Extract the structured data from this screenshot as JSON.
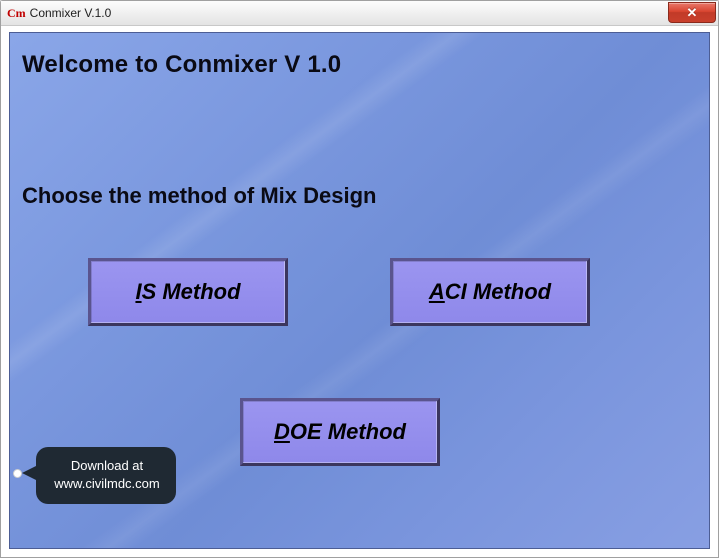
{
  "window": {
    "app_icon_text": "Cm",
    "title": "Conmixer V.1.0",
    "close_glyph": "✕"
  },
  "headings": {
    "welcome": "Welcome to Conmixer V 1.0",
    "choose": "Choose the method of Mix Design"
  },
  "buttons": {
    "is": {
      "hotkey": "I",
      "rest": "S Method"
    },
    "aci": {
      "hotkey": "A",
      "rest": "CI Method"
    },
    "doe": {
      "hotkey": "D",
      "rest": "OE Method"
    }
  },
  "tooltip": {
    "line1": "Download at",
    "line2": "www.civilmdc.com"
  },
  "colors": {
    "client_gradient_a": "#8aa6e8",
    "client_gradient_b": "#6f8dd6",
    "button_fill": "#948ff0",
    "button_border_dark": "#3b365e",
    "close_red": "#c9402c",
    "tooltip_bg": "#1f2933"
  }
}
